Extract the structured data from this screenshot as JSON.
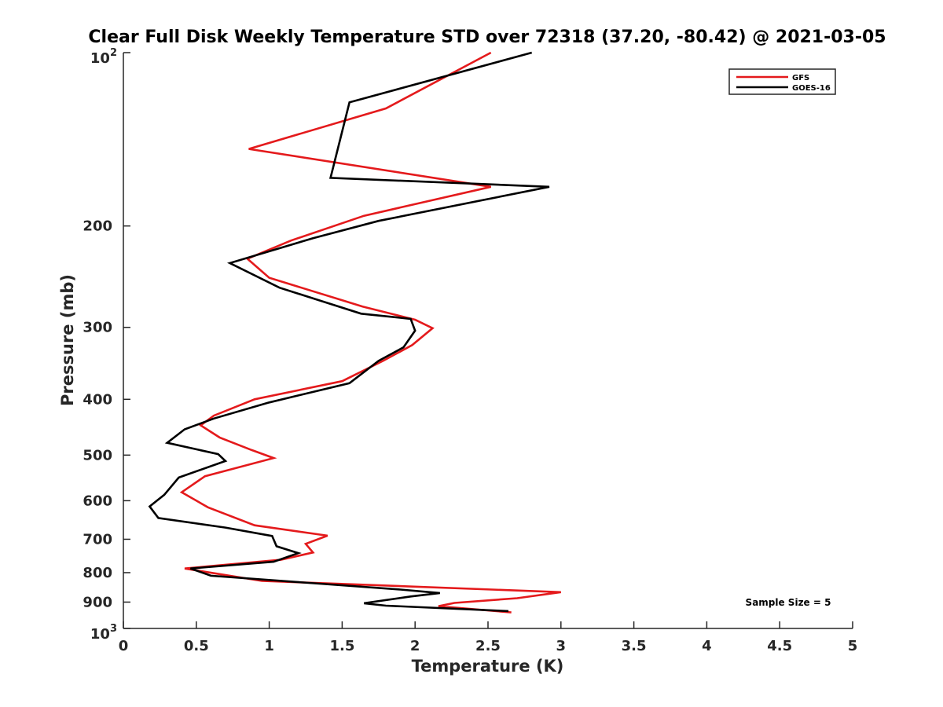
{
  "chart_data": {
    "type": "line",
    "title": "Clear Full Disk Weekly Temperature STD over 72318 (37.20, -80.42) @ 2021-03-05",
    "xlabel": "Temperature (K)",
    "ylabel": "Pressure (mb)",
    "xlim": [
      0,
      5
    ],
    "ylim": [
      100,
      1000
    ],
    "y_scale": "log",
    "y_reversed": true,
    "x_ticks": [
      "0",
      "0.5",
      "1",
      "1.5",
      "2",
      "2.5",
      "3",
      "3.5",
      "4",
      "4.5",
      "5"
    ],
    "x_tick_values": [
      0,
      0.5,
      1,
      1.5,
      2,
      2.5,
      3,
      3.5,
      4,
      4.5,
      5
    ],
    "y_ticks": [
      {
        "value": 100,
        "base": "10",
        "exp": "2"
      },
      {
        "value": 200,
        "label": "200"
      },
      {
        "value": 300,
        "label": "300"
      },
      {
        "value": 400,
        "label": "400"
      },
      {
        "value": 500,
        "label": "500"
      },
      {
        "value": 600,
        "label": "600"
      },
      {
        "value": 700,
        "label": "700"
      },
      {
        "value": 800,
        "label": "800"
      },
      {
        "value": 900,
        "label": "900"
      },
      {
        "value": 1000,
        "base": "10",
        "exp": "3"
      }
    ],
    "grid": false,
    "legend_position": "top-right",
    "series": [
      {
        "name": "GFS",
        "color": "#e41a1c",
        "points": [
          [
            2.52,
            100
          ],
          [
            1.8,
            125
          ],
          [
            0.86,
            147
          ],
          [
            2.52,
            171
          ],
          [
            1.65,
            192
          ],
          [
            1.15,
            212
          ],
          [
            0.85,
            228
          ],
          [
            1.0,
            246
          ],
          [
            1.64,
            276
          ],
          [
            2.0,
            291
          ],
          [
            2.12,
            301
          ],
          [
            1.98,
            322
          ],
          [
            1.78,
            343
          ],
          [
            1.5,
            372
          ],
          [
            0.9,
            400
          ],
          [
            0.62,
            427
          ],
          [
            0.53,
            444
          ],
          [
            0.66,
            466
          ],
          [
            0.88,
            490
          ],
          [
            1.03,
            506
          ],
          [
            0.56,
            544
          ],
          [
            0.4,
            580
          ],
          [
            0.58,
            616
          ],
          [
            0.9,
            662
          ],
          [
            1.4,
            690
          ],
          [
            1.25,
            713
          ],
          [
            1.3,
            738
          ],
          [
            1.08,
            760
          ],
          [
            0.42,
            787
          ],
          [
            0.95,
            827
          ],
          [
            3.0,
            865
          ],
          [
            2.7,
            886
          ],
          [
            2.27,
            903
          ],
          [
            2.16,
            915
          ],
          [
            2.66,
            938
          ]
        ]
      },
      {
        "name": "GOES-16",
        "color": "#000000",
        "points": [
          [
            2.8,
            100
          ],
          [
            1.55,
            122
          ],
          [
            1.42,
            165
          ],
          [
            2.92,
            171
          ],
          [
            1.75,
            196
          ],
          [
            1.3,
            210
          ],
          [
            0.73,
            232
          ],
          [
            1.07,
            256
          ],
          [
            1.63,
            284
          ],
          [
            1.97,
            290
          ],
          [
            2.0,
            304
          ],
          [
            1.92,
            325
          ],
          [
            1.75,
            343
          ],
          [
            1.55,
            375
          ],
          [
            1.0,
            405
          ],
          [
            0.62,
            432
          ],
          [
            0.42,
            451
          ],
          [
            0.3,
            476
          ],
          [
            0.65,
            498
          ],
          [
            0.7,
            512
          ],
          [
            0.38,
            547
          ],
          [
            0.28,
            586
          ],
          [
            0.18,
            614
          ],
          [
            0.24,
            643
          ],
          [
            0.7,
            668
          ],
          [
            1.02,
            691
          ],
          [
            1.05,
            720
          ],
          [
            1.2,
            740
          ],
          [
            1.03,
            766
          ],
          [
            0.46,
            787
          ],
          [
            0.6,
            810
          ],
          [
            1.9,
            856
          ],
          [
            2.17,
            868
          ],
          [
            1.97,
            880
          ],
          [
            1.65,
            904
          ],
          [
            1.8,
            913
          ],
          [
            2.64,
            933
          ]
        ]
      }
    ],
    "annotation": "Sample Size = 5"
  }
}
